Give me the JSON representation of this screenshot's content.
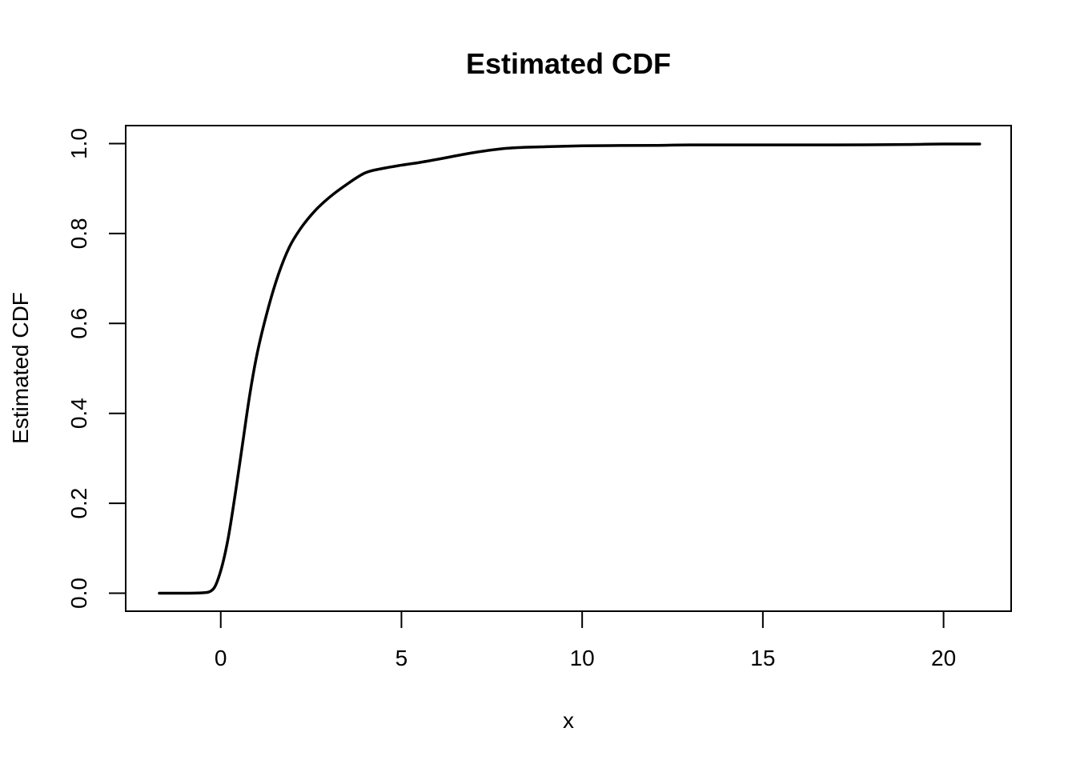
{
  "chart_data": {
    "type": "line",
    "title": "Estimated CDF",
    "xlabel": "x",
    "ylabel": "Estimated CDF",
    "xlim": [
      -2.63,
      21.87
    ],
    "ylim": [
      -0.04,
      1.04
    ],
    "xticks": [
      0,
      5,
      10,
      15,
      20
    ],
    "yticks": [
      0.0,
      0.2,
      0.4,
      0.6,
      0.8,
      1.0
    ],
    "grid": false,
    "legend": "none",
    "colors": {
      "line": "#000000"
    },
    "series": [
      {
        "x": [
          -1.7,
          -1.0,
          -0.5,
          -0.2,
          0.0,
          0.2,
          0.4,
          0.6,
          0.8,
          1.0,
          1.3,
          1.6,
          1.9,
          2.2,
          2.6,
          3.0,
          3.5,
          4.0,
          4.5,
          5.0,
          5.5,
          6.0,
          7.0,
          8.0,
          9.0,
          10.0,
          12.0,
          13.0,
          15.0,
          17.0,
          19.0,
          20.0,
          21.0
        ],
        "y": [
          0.0,
          0.0,
          0.001,
          0.01,
          0.05,
          0.12,
          0.22,
          0.33,
          0.44,
          0.53,
          0.63,
          0.71,
          0.77,
          0.81,
          0.85,
          0.88,
          0.91,
          0.935,
          0.945,
          0.952,
          0.958,
          0.965,
          0.98,
          0.99,
          0.993,
          0.995,
          0.996,
          0.997,
          0.997,
          0.997,
          0.998,
          0.999,
          0.999
        ]
      }
    ]
  }
}
